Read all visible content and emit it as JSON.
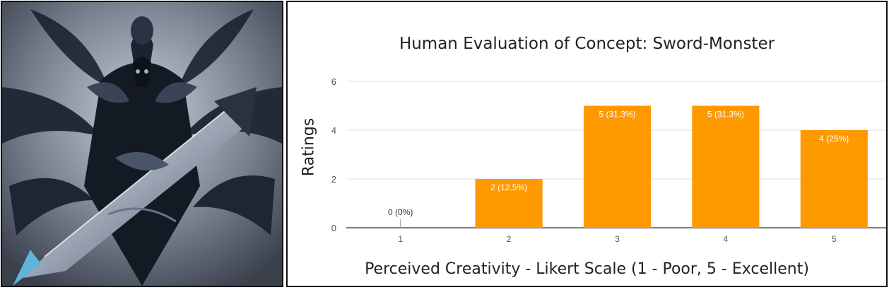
{
  "figure": {
    "image_subject": "sword-monster-art",
    "colors": {
      "bar": "#FF9900",
      "grid": "#e0e0e0",
      "axis": "#333333",
      "text": "#555555",
      "label_inside": "#ffffff"
    }
  },
  "chart_data": {
    "type": "bar",
    "title": "Human Evaluation of Concept: Sword-Monster",
    "xlabel": "Perceived Creativity - Likert Scale (1 - Poor, 5 - Excellent)",
    "ylabel": "Ratings",
    "categories": [
      "1",
      "2",
      "3",
      "4",
      "5"
    ],
    "values": [
      0,
      2,
      5,
      5,
      4
    ],
    "data_labels": [
      "0 (0%)",
      "2 (12.5%)",
      "5 (31.3%)",
      "5 (31.3%)",
      "4 (25%)"
    ],
    "yticks": [
      0,
      2,
      4,
      6
    ],
    "ylim": [
      0,
      6
    ],
    "grid": true,
    "legend": "none"
  }
}
